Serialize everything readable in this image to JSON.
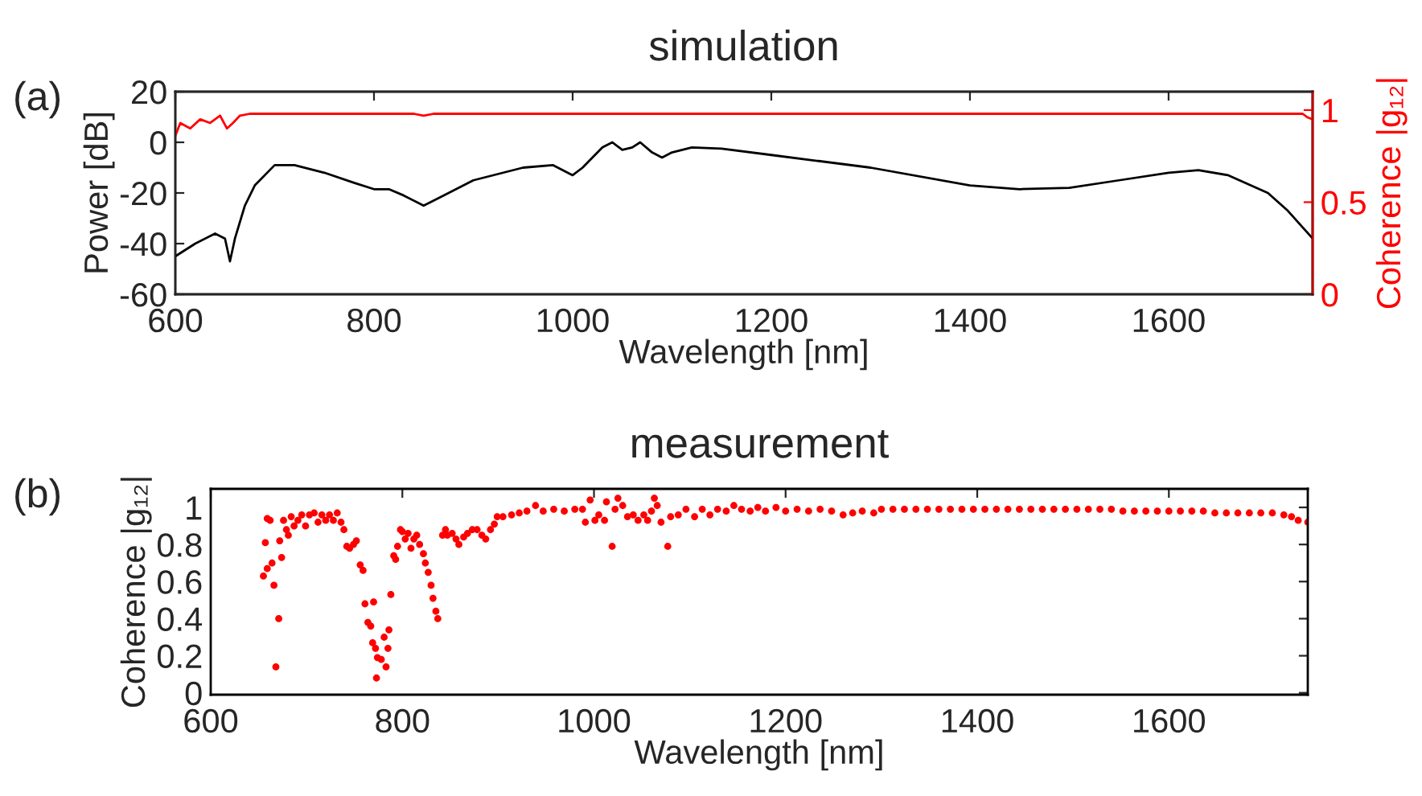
{
  "chart_data": [
    {
      "type": "line",
      "title": "simulation",
      "xlabel": "Wavelength [nm]",
      "ylabel": "Power [dB]",
      "y2label": "Coherence |g₁₂|",
      "annotations": [
        "(a)"
      ],
      "xlim": [
        600,
        1745
      ],
      "xticks": [
        600,
        800,
        1000,
        1200,
        1400,
        1600
      ],
      "ylim": [
        -60,
        20
      ],
      "yticks": [
        -60,
        -40,
        -20,
        0,
        20
      ],
      "y2lim": [
        0,
        1.1
      ],
      "y2ticks": [
        0,
        0.5,
        1
      ],
      "marker": "none",
      "line_style": "solid",
      "grid": false,
      "series": [
        {
          "color": "#000000",
          "x": [
            600,
            620,
            640,
            650,
            655,
            660,
            670,
            680,
            700,
            720,
            750,
            780,
            800,
            815,
            830,
            850,
            870,
            900,
            950,
            980,
            1000,
            1010,
            1030,
            1040,
            1050,
            1060,
            1068,
            1080,
            1090,
            1100,
            1120,
            1150,
            1200,
            1300,
            1400,
            1450,
            1500,
            1550,
            1600,
            1630,
            1660,
            1700,
            1720,
            1745
          ],
          "values": [
            -45,
            -40,
            -36,
            -38,
            -47,
            -38,
            -25,
            -17,
            -9,
            -9,
            -12,
            -16,
            -18.5,
            -18.5,
            -21,
            -25,
            -21,
            -15,
            -10,
            -9,
            -13,
            -10,
            -2,
            0,
            -3,
            -2,
            0,
            -4,
            -6,
            -4,
            -2,
            -2.5,
            -5,
            -10,
            -17,
            -18.5,
            -18,
            -15,
            -12,
            -11,
            -13,
            -20,
            -27,
            -38
          ]
        },
        {
          "color": "#ff0000",
          "axis": "y2",
          "x": [
            600,
            605,
            615,
            625,
            635,
            645,
            652,
            658,
            665,
            675,
            840,
            850,
            860,
            1735,
            1740,
            1745
          ],
          "values": [
            0.86,
            0.93,
            0.9,
            0.95,
            0.93,
            0.97,
            0.9,
            0.93,
            0.97,
            0.98,
            0.98,
            0.97,
            0.98,
            0.98,
            0.96,
            0.95
          ]
        }
      ]
    },
    {
      "type": "scatter",
      "title": "measurement",
      "xlabel": "Wavelength [nm]",
      "ylabel": "Coherence |g₁₂|",
      "annotations": [
        "(b)"
      ],
      "xlim": [
        600,
        1745
      ],
      "xticks": [
        600,
        800,
        1000,
        1200,
        1400,
        1600
      ],
      "ylim": [
        -0.01,
        1.1
      ],
      "yticks": [
        0,
        0.2,
        0.4,
        0.6,
        0.8,
        1
      ],
      "marker": "circle",
      "grid": false,
      "series": [
        {
          "color": "#ff0000",
          "x": [
            655,
            657,
            659,
            662,
            659,
            664,
            666,
            668,
            671,
            674,
            672,
            676,
            679,
            681,
            684,
            687,
            691,
            695,
            699,
            703,
            708,
            712,
            716,
            720,
            724,
            728,
            732,
            736,
            739,
            742,
            745,
            749,
            752,
            756,
            759,
            761,
            764,
            767,
            769,
            770,
            772,
            774,
            773,
            778,
            781,
            783,
            785,
            786,
            788,
            791,
            793,
            795,
            798,
            800,
            803,
            806,
            809,
            812,
            815,
            818,
            822,
            824,
            827,
            830,
            832,
            835,
            837,
            842,
            845,
            847,
            852,
            856,
            859,
            864,
            868,
            873,
            878,
            883,
            887,
            892,
            896,
            899,
            905,
            914,
            922,
            930,
            939,
            947,
            958,
            969,
            980,
            988,
            991,
            996,
            1001,
            1005,
            1011,
            1013,
            1019,
            1022,
            1025,
            1030,
            1035,
            1041,
            1046,
            1052,
            1056,
            1060,
            1063,
            1066,
            1070,
            1077,
            1080,
            1088,
            1096,
            1105,
            1113,
            1121,
            1129,
            1138,
            1146,
            1154,
            1163,
            1171,
            1179,
            1190,
            1200,
            1212,
            1224,
            1236,
            1248,
            1260,
            1270,
            1280,
            1292,
            1300,
            1312,
            1324,
            1336,
            1348,
            1360,
            1372,
            1384,
            1396,
            1408,
            1420,
            1432,
            1444,
            1456,
            1468,
            1480,
            1492,
            1504,
            1516,
            1528,
            1540,
            1552,
            1564,
            1576,
            1588,
            1600,
            1612,
            1624,
            1636,
            1648,
            1660,
            1672,
            1684,
            1696,
            1708,
            1720,
            1728,
            1735,
            1745
          ],
          "values": [
            0.63,
            0.81,
            0.94,
            0.93,
            0.67,
            0.7,
            0.58,
            0.14,
            0.4,
            0.73,
            0.82,
            0.93,
            0.88,
            0.85,
            0.95,
            0.9,
            0.93,
            0.96,
            0.9,
            0.96,
            0.97,
            0.92,
            0.96,
            0.93,
            0.96,
            0.93,
            0.97,
            0.92,
            0.88,
            0.79,
            0.78,
            0.8,
            0.82,
            0.69,
            0.66,
            0.48,
            0.38,
            0.36,
            0.27,
            0.49,
            0.24,
            0.19,
            0.08,
            0.18,
            0.3,
            0.14,
            0.24,
            0.34,
            0.53,
            0.74,
            0.72,
            0.79,
            0.88,
            0.87,
            0.83,
            0.86,
            0.78,
            0.83,
            0.85,
            0.8,
            0.75,
            0.7,
            0.65,
            0.58,
            0.51,
            0.44,
            0.4,
            0.85,
            0.88,
            0.85,
            0.86,
            0.83,
            0.8,
            0.84,
            0.86,
            0.88,
            0.88,
            0.85,
            0.83,
            0.88,
            0.91,
            0.95,
            0.95,
            0.96,
            0.97,
            0.98,
            1.01,
            0.98,
            0.99,
            0.98,
            0.99,
            0.99,
            0.92,
            1.04,
            0.93,
            0.96,
            0.93,
            1.03,
            0.79,
            0.99,
            1.05,
            1.01,
            0.95,
            0.96,
            0.93,
            0.96,
            0.93,
            0.98,
            1.05,
            1.01,
            0.92,
            0.79,
            0.95,
            0.96,
            0.99,
            0.95,
            0.99,
            0.96,
            0.99,
            0.98,
            1.01,
            0.99,
            0.98,
            1.0,
            0.98,
            1.0,
            0.98,
            0.99,
            0.98,
            0.99,
            0.98,
            0.96,
            0.97,
            0.98,
            0.97,
            0.99,
            0.99,
            0.99,
            0.99,
            0.99,
            0.99,
            0.99,
            0.99,
            0.99,
            0.99,
            0.99,
            0.99,
            0.99,
            0.99,
            0.99,
            0.99,
            0.99,
            0.99,
            0.99,
            0.99,
            0.99,
            0.98,
            0.98,
            0.98,
            0.98,
            0.98,
            0.98,
            0.98,
            0.98,
            0.97,
            0.97,
            0.97,
            0.97,
            0.97,
            0.97,
            0.96,
            0.95,
            0.93,
            0.92
          ]
        }
      ]
    }
  ]
}
